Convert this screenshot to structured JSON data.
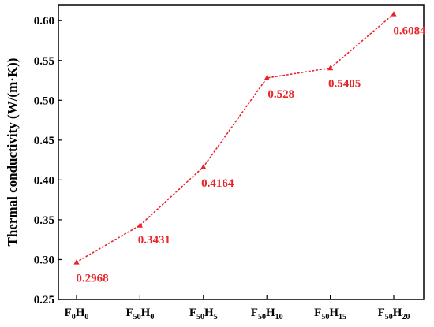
{
  "chart_data": {
    "type": "line",
    "ylabel": "Thermal conductivity (W/(m·K))",
    "xlabel": "",
    "title": "",
    "ylim": [
      0.25,
      0.62
    ],
    "yticks": [
      "0.25",
      "0.30",
      "0.35",
      "0.40",
      "0.45",
      "0.50",
      "0.55",
      "0.60"
    ],
    "categories": [
      {
        "main1": "F",
        "sub1": "0",
        "main2": "H",
        "sub2": "0"
      },
      {
        "main1": "F",
        "sub1": "50",
        "main2": "H",
        "sub2": "0"
      },
      {
        "main1": "F",
        "sub1": "50",
        "main2": "H",
        "sub2": "5"
      },
      {
        "main1": "F",
        "sub1": "50",
        "main2": "H",
        "sub2": "10"
      },
      {
        "main1": "F",
        "sub1": "50",
        "main2": "H",
        "sub2": "15"
      },
      {
        "main1": "F",
        "sub1": "50",
        "main2": "H",
        "sub2": "20"
      }
    ],
    "values": [
      0.2968,
      0.3431,
      0.4164,
      0.528,
      0.5405,
      0.6084
    ],
    "data_labels": [
      "0.2968",
      "0.3431",
      "0.4164",
      "0.528",
      "0.5405",
      "0.6084"
    ],
    "series_color": "#e8232a",
    "line_style": "dotted",
    "marker": "triangle",
    "grid": false,
    "legend": "none"
  }
}
